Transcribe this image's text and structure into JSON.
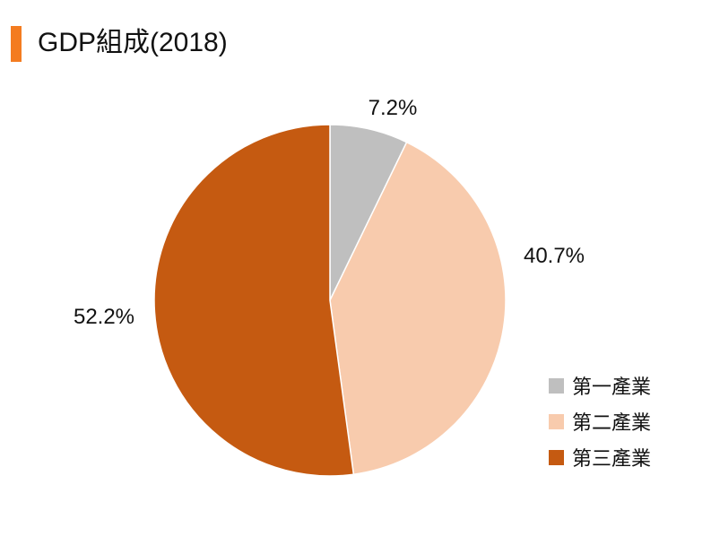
{
  "header": {
    "title": "GDP組成(2018)",
    "accent_color": "#f47c20"
  },
  "chart_data": {
    "type": "pie",
    "title": "GDP組成(2018)",
    "start_angle": "12 o'clock",
    "direction": "clockwise",
    "legend_position": "bottom-right",
    "slices": [
      {
        "name": "第一產業",
        "value": 7.2,
        "label": "7.2%",
        "color": "#bfbfbf"
      },
      {
        "name": "第二產業",
        "value": 40.7,
        "label": "40.7%",
        "color": "#f8cbad"
      },
      {
        "name": "第三產業",
        "value": 52.2,
        "label": "52.2%",
        "color": "#c55a11"
      }
    ]
  }
}
